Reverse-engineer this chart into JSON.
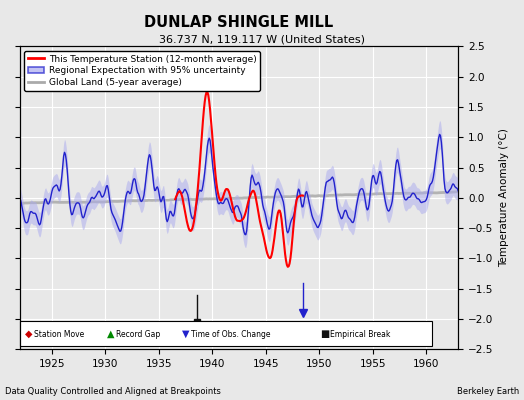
{
  "title": "DUNLAP SHINGLE MILL",
  "subtitle": "36.737 N, 119.117 W (United States)",
  "ylabel": "Temperature Anomaly (°C)",
  "footer_left": "Data Quality Controlled and Aligned at Breakpoints",
  "footer_right": "Berkeley Earth",
  "xlim": [
    1922,
    1963
  ],
  "ylim": [
    -2.5,
    2.5
  ],
  "yticks": [
    -2.5,
    -2,
    -1.5,
    -1,
    -0.5,
    0,
    0.5,
    1,
    1.5,
    2,
    2.5
  ],
  "xticks": [
    1925,
    1930,
    1935,
    1940,
    1945,
    1950,
    1955,
    1960
  ],
  "bg_color": "#e8e8e8",
  "plot_bg_color": "#e8e8e8",
  "grid_color": "white",
  "empirical_break_x": 1938.6,
  "empirical_break_y": -2.05,
  "tobs_change_x": 1948.5,
  "legend_labels": [
    "This Temperature Station (12-month average)",
    "Regional Expectation with 95% uncertainty",
    "Global Land (5-year average)"
  ],
  "legend_colors": [
    "#ff0000",
    "#2222cc",
    "#aaaaaa"
  ],
  "uncertainty_color": "#aaaaee",
  "station_move_color": "#cc0000",
  "record_gap_color": "#008800",
  "tobs_color": "#2222cc",
  "empirical_color": "#111111"
}
